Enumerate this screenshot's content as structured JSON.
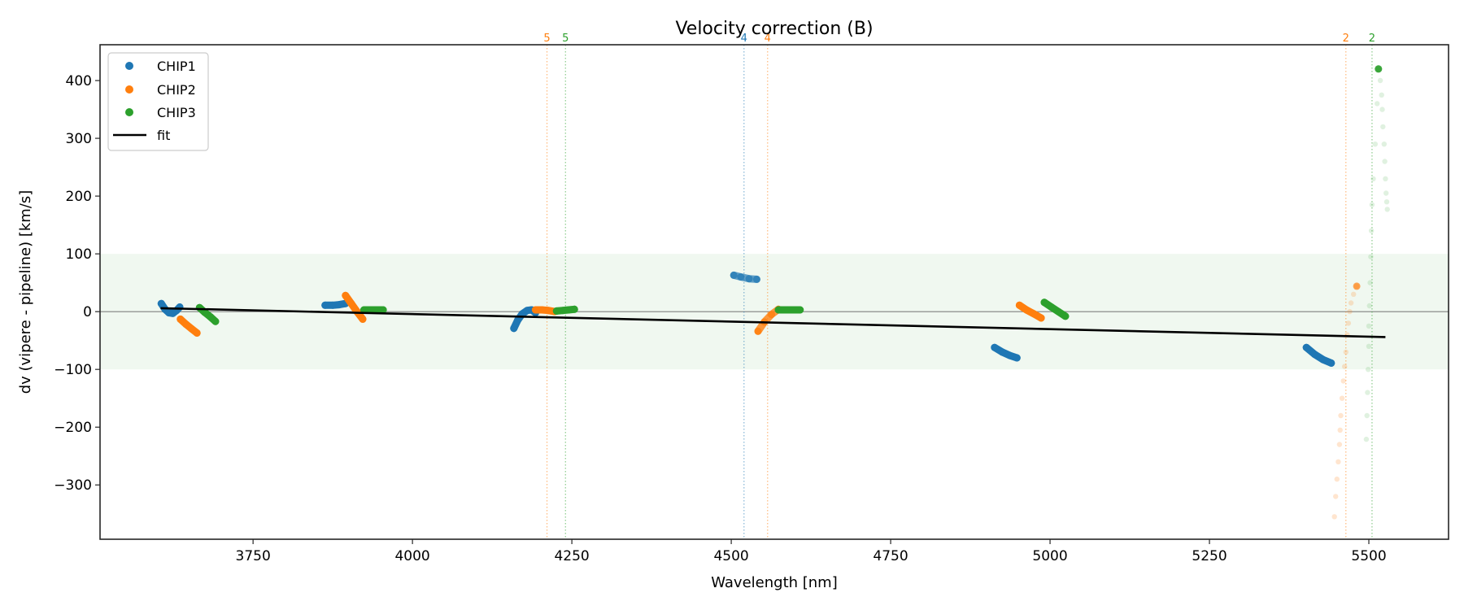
{
  "chart_data": {
    "type": "scatter",
    "title": "Velocity correction (B)",
    "xlabel": "Wavelength [nm]",
    "ylabel": "dv (vipere - pipeline) [km/s]",
    "xlim": [
      3510,
      5625
    ],
    "ylim": [
      -394,
      462
    ],
    "xticks": [
      3750,
      4000,
      4250,
      4500,
      4750,
      5000,
      5250,
      5500
    ],
    "xtick_labels": [
      "3750",
      "4000",
      "4250",
      "4500",
      "4750",
      "5000",
      "5250",
      "5500"
    ],
    "yticks": [
      -300,
      -200,
      -100,
      0,
      100,
      200,
      300,
      400
    ],
    "ytick_labels": [
      "−300",
      "−200",
      "−100",
      "0",
      "100",
      "200",
      "300",
      "400"
    ],
    "grid": false,
    "legend": {
      "position": "top-left",
      "entries": [
        {
          "label": "CHIP1",
          "kind": "marker",
          "color": "#1f77b4"
        },
        {
          "label": "CHIP2",
          "kind": "marker",
          "color": "#ff7f0e"
        },
        {
          "label": "CHIP3",
          "kind": "marker",
          "color": "#2ca02c"
        },
        {
          "label": "fit",
          "kind": "line",
          "color": "#000000"
        }
      ]
    },
    "band": {
      "y_from": -100,
      "y_to": 100,
      "color": "#2ca02c"
    },
    "zero_line": {
      "y": 0,
      "color": "#808080"
    },
    "markers": [
      {
        "x": 4211,
        "label": "5",
        "color": "#ff7f0e"
      },
      {
        "x": 4240,
        "label": "5",
        "color": "#2ca02c"
      },
      {
        "x": 4520,
        "label": "4",
        "color": "#1f77b4"
      },
      {
        "x": 4557,
        "label": "4",
        "color": "#ff7f0e"
      },
      {
        "x": 5464,
        "label": "2",
        "color": "#ff7f0e"
      },
      {
        "x": 5505,
        "label": "2",
        "color": "#2ca02c"
      }
    ],
    "fit": {
      "name": "fit",
      "x": [
        3605,
        5526
      ],
      "y": [
        6,
        -44
      ],
      "color": "#000000"
    },
    "series": [
      {
        "name": "CHIP1",
        "color": "#1f77b4",
        "segments": [
          {
            "x": [
              3606,
              3612,
              3618,
              3624,
              3630,
              3635
            ],
            "y": [
              14,
              4,
              -2,
              -3,
              2,
              8
            ],
            "alpha": 1.0
          },
          {
            "x": [
              3863,
              3875,
              3885,
              3895
            ],
            "y": [
              11,
              11,
              12,
              14
            ],
            "alpha": 1.0
          },
          {
            "x": [
              4159,
              4165,
              4172,
              4180,
              4187,
              4193
            ],
            "y": [
              -29,
              -15,
              -4,
              2,
              3,
              -2
            ],
            "alpha": 1.0
          },
          {
            "x": [
              4504,
              4515,
              4528,
              4540
            ],
            "y": [
              63,
              60,
              57,
              56
            ],
            "alpha": 0.7
          },
          {
            "x": [
              4913,
              4925,
              4937,
              4948
            ],
            "y": [
              -62,
              -70,
              -76,
              -80
            ],
            "alpha": 1.0
          },
          {
            "x": [
              5402,
              5415,
              5428,
              5441
            ],
            "y": [
              -62,
              -74,
              -83,
              -89
            ],
            "alpha": 1.0
          }
        ]
      },
      {
        "name": "CHIP2",
        "color": "#ff7f0e",
        "segments": [
          {
            "x": [
              3636,
              3645,
              3654,
              3662
            ],
            "y": [
              -13,
              -22,
              -30,
              -37
            ],
            "alpha": 1.0
          },
          {
            "x": [
              3895,
              3904,
              3913,
              3922
            ],
            "y": [
              28,
              14,
              0,
              -13
            ],
            "alpha": 1.0
          },
          {
            "x": [
              4193,
              4203,
              4213,
              4223
            ],
            "y": [
              3,
              3,
              2,
              0
            ],
            "alpha": 1.0
          },
          {
            "x": [
              4542,
              4552,
              4563,
              4574
            ],
            "y": [
              -34,
              -18,
              -5,
              4
            ],
            "alpha": 0.8
          },
          {
            "x": [
              4952,
              4963,
              4975,
              4986
            ],
            "y": [
              11,
              3,
              -4,
              -11
            ],
            "alpha": 1.0
          },
          {
            "x": [
              5481,
              5476,
              5472,
              5470,
              5468,
              5466,
              5464,
              5462,
              5460,
              5458,
              5456,
              5455,
              5454,
              5452,
              5450,
              5448,
              5446
            ],
            "y": [
              44,
              30,
              15,
              0,
              -20,
              -40,
              -70,
              -95,
              -120,
              -150,
              -180,
              -205,
              -230,
              -260,
              -290,
              -320,
              -355
            ],
            "alpha": 0.2
          }
        ]
      },
      {
        "name": "CHIP3",
        "color": "#2ca02c",
        "segments": [
          {
            "x": [
              3666,
              3674,
              3683,
              3691
            ],
            "y": [
              7,
              -1,
              -9,
              -17
            ],
            "alpha": 1.0
          },
          {
            "x": [
              3924,
              3934,
              3944,
              3954
            ],
            "y": [
              3,
              3,
              3,
              3
            ],
            "alpha": 1.0
          },
          {
            "x": [
              4226,
              4236,
              4245,
              4254
            ],
            "y": [
              1,
              2,
              3,
              4
            ],
            "alpha": 1.0
          },
          {
            "x": [
              4574,
              4585,
              4597,
              4608
            ],
            "y": [
              3,
              3,
              3,
              3
            ],
            "alpha": 1.0
          },
          {
            "x": [
              4991,
              5002,
              5013,
              5024
            ],
            "y": [
              16,
              8,
              0,
              -8
            ],
            "alpha": 1.0
          },
          {
            "x": [
              5496,
              5497,
              5498,
              5499,
              5500,
              5500,
              5501,
              5502,
              5503,
              5504,
              5505,
              5507,
              5510,
              5513,
              5515
            ],
            "y": [
              -221,
              -180,
              -140,
              -100,
              -60,
              -25,
              10,
              50,
              95,
              140,
              185,
              230,
              290,
              360,
              420
            ],
            "alpha": 0.15
          },
          {
            "x": [
              5515,
              5518,
              5520,
              5521,
              5522,
              5524,
              5525,
              5526,
              5527,
              5528,
              5529
            ],
            "y": [
              420,
              400,
              375,
              350,
              320,
              290,
              260,
              230,
              205,
              190,
              177
            ],
            "alpha": 0.15
          }
        ]
      }
    ]
  }
}
